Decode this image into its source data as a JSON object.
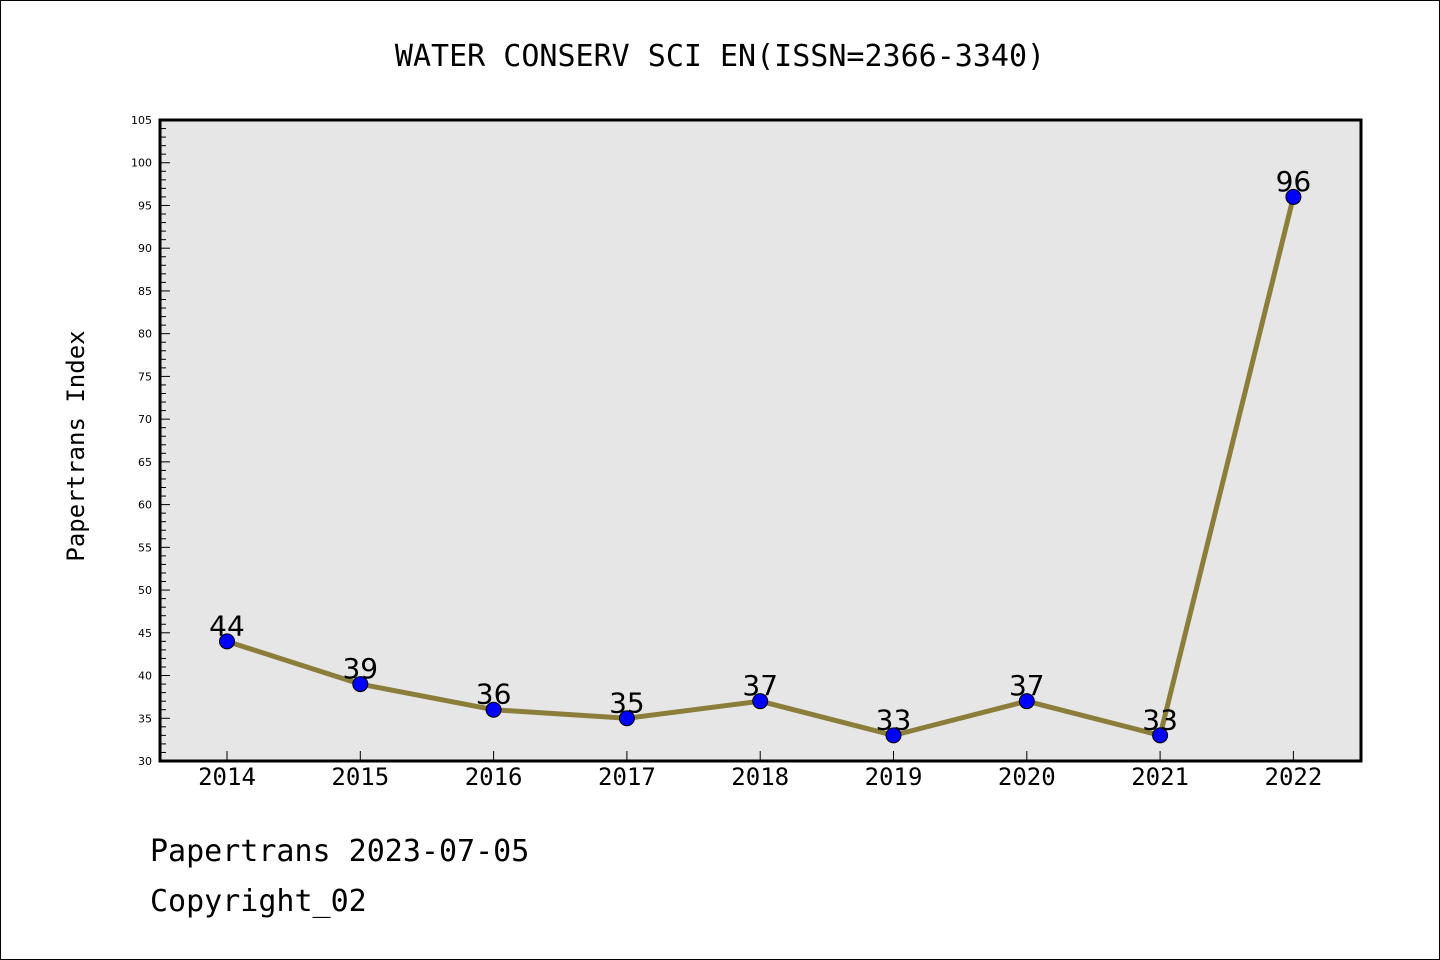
{
  "chart_data": {
    "type": "line",
    "title": "WATER CONSERV SCI EN(ISSN=2366-3340)",
    "xlabel": "",
    "ylabel": "Papertrans Index",
    "categories": [
      "2014",
      "2015",
      "2016",
      "2017",
      "2018",
      "2019",
      "2020",
      "2021",
      "2022"
    ],
    "series": [
      {
        "values": [
          44,
          39,
          36,
          35,
          37,
          33,
          37,
          33,
          96
        ]
      }
    ],
    "ylim": [
      30,
      105
    ],
    "yticks": [
      30,
      35,
      40,
      45,
      50,
      55,
      60,
      65,
      70,
      75,
      80,
      85,
      90,
      95,
      100,
      105
    ],
    "grid": false,
    "legend": "none",
    "colors": {
      "line": "#8b7d3a",
      "marker": "#0000ff",
      "plot_background": "#e6e6e6"
    }
  },
  "footer": {
    "line1": "Papertrans 2023-07-05",
    "line2": "Copyright_02"
  }
}
